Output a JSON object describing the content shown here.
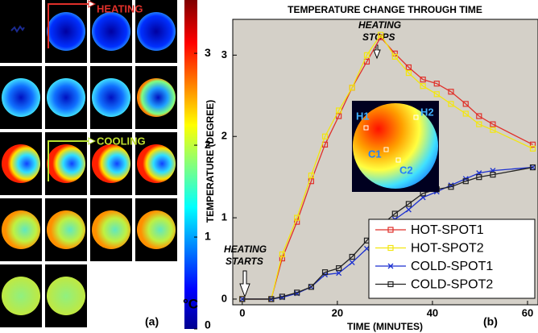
{
  "figure_a": {
    "labels": [
      "HEATING",
      "COOLING"
    ],
    "colorbar": {
      "lim": [
        0,
        3.58
      ],
      "ticks": [
        0,
        1,
        2,
        3
      ],
      "unit": "°C"
    },
    "panel_label": "(a)"
  },
  "chart_data": {
    "type": "line",
    "title": "TEMPERATURE CHANGE THROUGH TIME",
    "x_label": "TIME (MINUTES)",
    "y_label": "TEMPERATURE (DEGREE)",
    "panel_label": "(b)",
    "annotations": [
      [
        "HEATING",
        "STOPS"
      ],
      [
        "HEATING",
        "STARTS"
      ]
    ],
    "inset_labels": [
      "H1",
      "H2",
      "C1",
      "C2"
    ],
    "xlim": [
      -2,
      62.2
    ],
    "ylim": [
      -0.07,
      3.44
    ],
    "xticks": [
      0,
      20,
      40,
      60
    ],
    "yticks": [
      0,
      1,
      2,
      3
    ],
    "legend": "lower right",
    "x": [
      0,
      6.1,
      8.4,
      11.5,
      14.5,
      17.4,
      20.3,
      23.1,
      26.2,
      29.1,
      32.1,
      35,
      38,
      40.9,
      43.9,
      47,
      49.8,
      52.7,
      61.1
    ],
    "series": [
      {
        "name": "HOT-SPOT1",
        "color": "#e0302a",
        "marker": "square",
        "values": [
          0,
          0,
          0.5,
          0.95,
          1.45,
          1.9,
          2.25,
          2.6,
          2.92,
          3.22,
          3.02,
          2.85,
          2.7,
          2.65,
          2.55,
          2.4,
          2.25,
          2.15,
          1.9
        ]
      },
      {
        "name": "HOT-SPOT2",
        "color": "#f2e610",
        "marker": "square",
        "values": [
          0,
          0,
          0.55,
          1.0,
          1.52,
          2.0,
          2.32,
          2.6,
          3.0,
          3.25,
          2.98,
          2.78,
          2.62,
          2.52,
          2.4,
          2.28,
          2.15,
          2.08,
          1.85
        ]
      },
      {
        "name": "COLD-SPOT1",
        "color": "#1a2fd0",
        "marker": "x",
        "values": [
          0,
          0,
          0.02,
          0.07,
          0.15,
          0.3,
          0.32,
          0.45,
          0.62,
          0.82,
          0.98,
          1.1,
          1.25,
          1.32,
          1.4,
          1.48,
          1.55,
          1.58,
          1.62
        ]
      },
      {
        "name": "COLD-SPOT2",
        "color": "#222222",
        "marker": "square",
        "values": [
          0,
          0,
          0.03,
          0.08,
          0.15,
          0.33,
          0.38,
          0.52,
          0.72,
          0.9,
          1.05,
          1.17,
          1.3,
          1.35,
          1.38,
          1.45,
          1.5,
          1.53,
          1.62
        ]
      }
    ]
  }
}
